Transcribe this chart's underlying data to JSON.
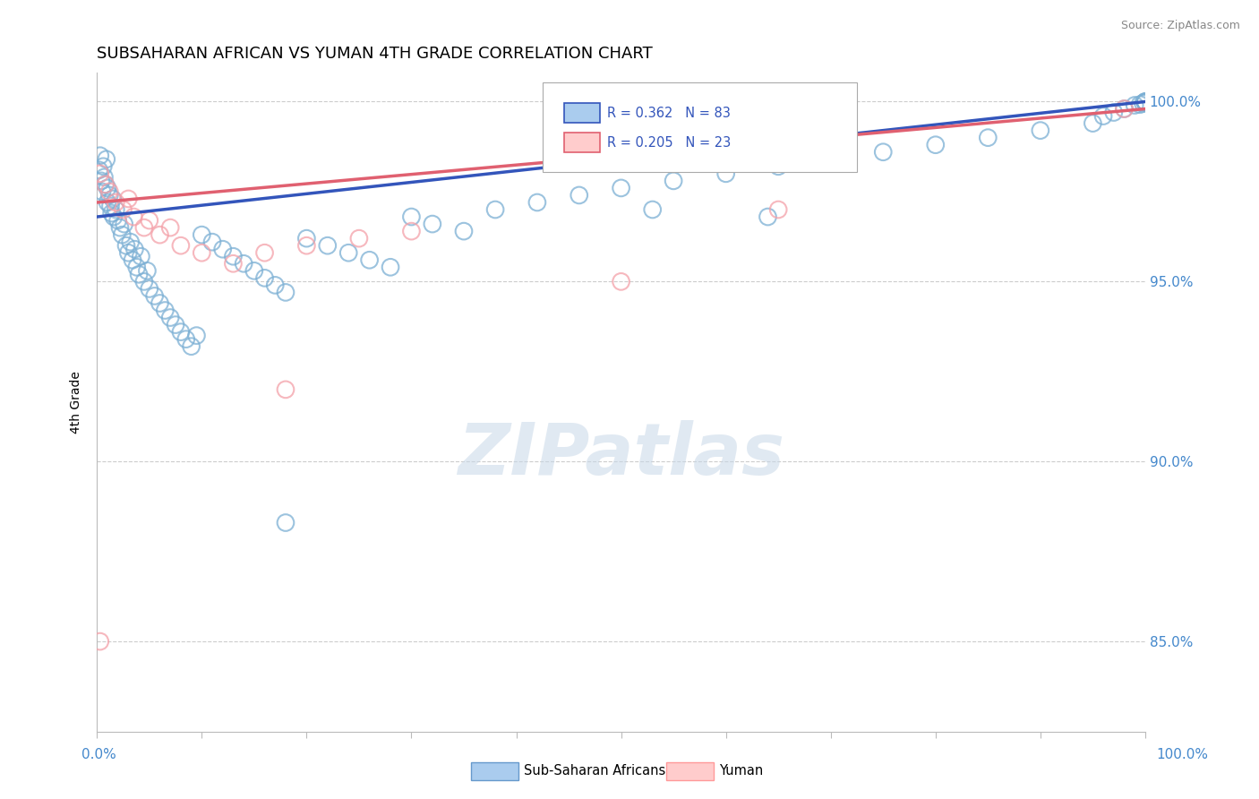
{
  "title": "SUBSAHARAN AFRICAN VS YUMAN 4TH GRADE CORRELATION CHART",
  "source_text": "Source: ZipAtlas.com",
  "ylabel": "4th Grade",
  "ylabel_right_labels": [
    "85.0%",
    "90.0%",
    "95.0%",
    "100.0%"
  ],
  "ylabel_right_ticks": [
    0.85,
    0.9,
    0.95,
    1.0
  ],
  "xmin": 0.0,
  "xmax": 1.0,
  "ymin": 0.825,
  "ymax": 1.008,
  "blue_R": 0.362,
  "blue_N": 83,
  "pink_R": 0.205,
  "pink_N": 23,
  "blue_color": "#7BAFD4",
  "pink_color": "#F4A0A8",
  "blue_line_color": "#3355BB",
  "pink_line_color": "#E06070",
  "legend_label_blue": "Sub-Saharan Africans",
  "legend_label_pink": "Yuman",
  "dashed_line_y1": 0.9985,
  "dashed_line_y2": 0.9495,
  "dashed_line_y3": 0.8995,
  "dashed_line_y4": 0.8495,
  "watermark_text": "ZIPatlas",
  "blue_scatter_x": [
    0.002,
    0.003,
    0.004,
    0.005,
    0.006,
    0.007,
    0.008,
    0.009,
    0.01,
    0.01,
    0.012,
    0.013,
    0.014,
    0.015,
    0.016,
    0.018,
    0.02,
    0.022,
    0.024,
    0.026,
    0.028,
    0.03,
    0.032,
    0.034,
    0.036,
    0.038,
    0.04,
    0.042,
    0.045,
    0.048,
    0.05,
    0.055,
    0.06,
    0.065,
    0.07,
    0.075,
    0.08,
    0.085,
    0.09,
    0.095,
    0.1,
    0.11,
    0.12,
    0.13,
    0.14,
    0.15,
    0.16,
    0.17,
    0.18,
    0.2,
    0.22,
    0.24,
    0.26,
    0.28,
    0.3,
    0.32,
    0.35,
    0.38,
    0.42,
    0.46,
    0.5,
    0.55,
    0.6,
    0.65,
    0.7,
    0.75,
    0.8,
    0.85,
    0.9,
    0.95,
    0.96,
    0.97,
    0.98,
    0.99,
    0.995,
    0.998,
    1.0,
    1.0,
    1.0,
    1.0,
    0.53,
    0.64,
    0.18
  ],
  "blue_scatter_y": [
    0.981,
    0.985,
    0.978,
    0.975,
    0.982,
    0.979,
    0.977,
    0.984,
    0.972,
    0.976,
    0.974,
    0.971,
    0.969,
    0.973,
    0.968,
    0.97,
    0.967,
    0.965,
    0.963,
    0.966,
    0.96,
    0.958,
    0.961,
    0.956,
    0.959,
    0.954,
    0.952,
    0.957,
    0.95,
    0.953,
    0.948,
    0.946,
    0.944,
    0.942,
    0.94,
    0.938,
    0.936,
    0.934,
    0.932,
    0.935,
    0.963,
    0.961,
    0.959,
    0.957,
    0.955,
    0.953,
    0.951,
    0.949,
    0.947,
    0.962,
    0.96,
    0.958,
    0.956,
    0.954,
    0.968,
    0.966,
    0.964,
    0.97,
    0.972,
    0.974,
    0.976,
    0.978,
    0.98,
    0.982,
    0.984,
    0.986,
    0.988,
    0.99,
    0.992,
    0.994,
    0.996,
    0.997,
    0.998,
    0.999,
    0.9992,
    0.9995,
    0.9998,
    0.9999,
    1.0,
    1.0,
    0.97,
    0.968,
    0.883
  ],
  "pink_scatter_x": [
    0.003,
    0.008,
    0.012,
    0.018,
    0.025,
    0.035,
    0.045,
    0.06,
    0.08,
    0.1,
    0.13,
    0.16,
    0.2,
    0.25,
    0.3,
    0.03,
    0.05,
    0.07,
    0.003,
    0.18,
    0.5,
    0.65,
    0.98
  ],
  "pink_scatter_y": [
    0.98,
    0.977,
    0.975,
    0.972,
    0.97,
    0.968,
    0.965,
    0.963,
    0.96,
    0.958,
    0.955,
    0.958,
    0.96,
    0.962,
    0.964,
    0.973,
    0.967,
    0.965,
    0.85,
    0.92,
    0.95,
    0.97,
    0.998
  ]
}
